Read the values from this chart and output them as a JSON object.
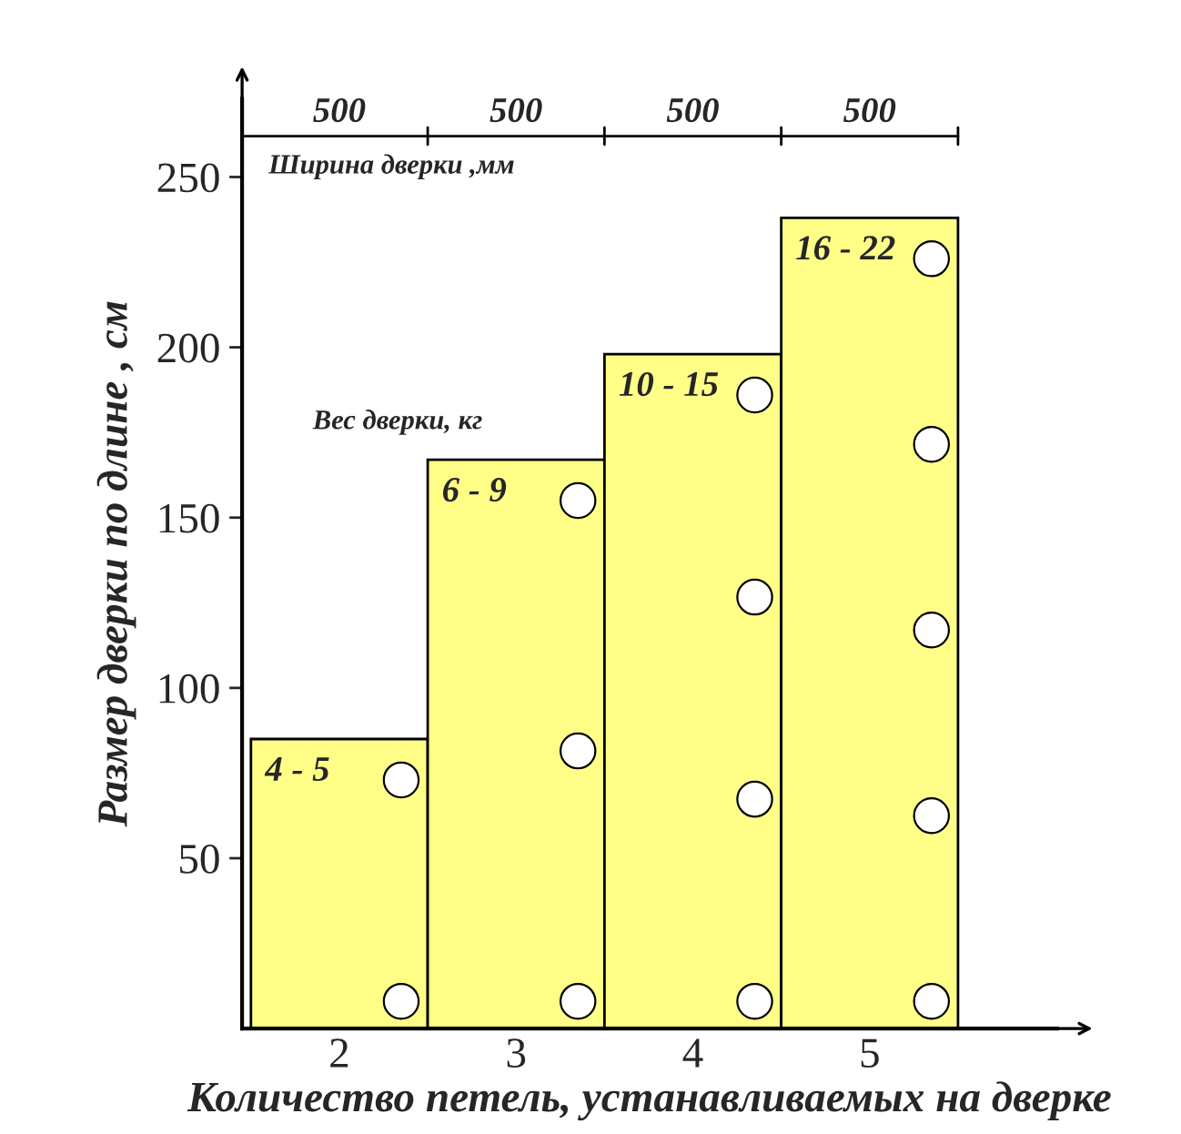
{
  "chart_data": {
    "type": "bar",
    "xlabel": "Количество петель, устанавливаемых на дверке",
    "ylabel": "Размер дверки по длине , см",
    "categories": [
      "2",
      "3",
      "4",
      "5"
    ],
    "values": [
      85,
      167,
      198,
      238
    ],
    "color": "#ffff88",
    "ylim": [
      0,
      273
    ],
    "yticks": [
      50,
      100,
      150,
      200,
      250
    ],
    "grid": false,
    "ref_lines": [
      {
        "axis": "y",
        "value": 262,
        "label": null
      }
    ],
    "annotations": [
      {
        "text": "4 - 5",
        "x": "2",
        "y": 85
      },
      {
        "text": "6 - 9",
        "x": "3",
        "y": 167
      },
      {
        "text": "10 - 15",
        "x": "4",
        "y": 198
      },
      {
        "text": "16 - 22",
        "x": "5",
        "y": 238
      },
      {
        "text": "500",
        "x": "2",
        "y": 262
      },
      {
        "text": "500",
        "x": "3",
        "y": 262
      },
      {
        "text": "500",
        "x": "4",
        "y": 262
      },
      {
        "text": "500",
        "x": "5",
        "y": 262
      },
      "Ширина дверки ,мм",
      "Вес дверки, кг"
    ]
  }
}
